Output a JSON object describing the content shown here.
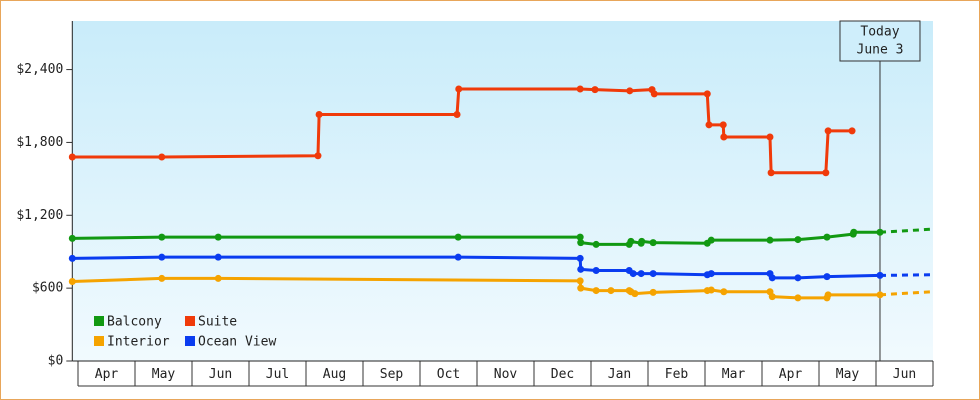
{
  "chart_data": {
    "type": "line",
    "xlim": [
      -0.1,
      15
    ],
    "ylim": [
      0,
      2800
    ],
    "xticks": [
      {
        "value": 0,
        "label": "Apr"
      },
      {
        "value": 1,
        "label": "May"
      },
      {
        "value": 2,
        "label": "Jun"
      },
      {
        "value": 3,
        "label": "Jul"
      },
      {
        "value": 4,
        "label": "Aug"
      },
      {
        "value": 5,
        "label": "Sep"
      },
      {
        "value": 6,
        "label": "Oct"
      },
      {
        "value": 7,
        "label": "Nov"
      },
      {
        "value": 8,
        "label": "Dec"
      },
      {
        "value": 9,
        "label": "Jan"
      },
      {
        "value": 10,
        "label": "Feb"
      },
      {
        "value": 11,
        "label": "Mar"
      },
      {
        "value": 12,
        "label": "Apr"
      },
      {
        "value": 13,
        "label": "May"
      },
      {
        "value": 14,
        "label": "Jun"
      }
    ],
    "yticks": [
      {
        "value": 0,
        "label": "$0"
      },
      {
        "value": 600,
        "label": "$600"
      },
      {
        "value": 1200,
        "label": "$1,200"
      },
      {
        "value": 1800,
        "label": "$1,800"
      },
      {
        "value": 2400,
        "label": "$2,400"
      }
    ],
    "today": {
      "x": 14.07,
      "label": [
        "Today",
        "June 3"
      ]
    },
    "projection_x": [
      14.07,
      14.96
    ],
    "series": [
      {
        "name": "Balcony",
        "color": "#129912",
        "x": [
          -0.1,
          1.47,
          2.46,
          6.67,
          8.81,
          8.82,
          9.09,
          9.67,
          9.7,
          9.88,
          9.89,
          10.09,
          11.04,
          11.11,
          12.14,
          12.63,
          13.14,
          13.6,
          13.61,
          14.07
        ],
        "values": [
          1010,
          1020,
          1020,
          1020,
          1020,
          975,
          960,
          960,
          985,
          970,
          985,
          975,
          970,
          995,
          995,
          1000,
          1020,
          1045,
          1060,
          1060
        ],
        "projection": [
          1060,
          1085
        ]
      },
      {
        "name": "Suite",
        "color": "#f03a0a",
        "x": [
          -0.1,
          1.47,
          4.21,
          4.23,
          6.65,
          6.68,
          8.81,
          9.07,
          9.68,
          10.07,
          10.11,
          11.04,
          11.07,
          11.32,
          11.33,
          12.14,
          12.16,
          13.12,
          13.16,
          13.58
        ],
        "values": [
          1680,
          1680,
          1690,
          2030,
          2030,
          2240,
          2240,
          2235,
          2225,
          2235,
          2200,
          2200,
          1945,
          1945,
          1845,
          1845,
          1550,
          1550,
          1895,
          1895
        ]
      },
      {
        "name": "Interior",
        "color": "#f5a300",
        "x": [
          -0.1,
          1.47,
          2.46,
          8.81,
          8.82,
          9.09,
          9.35,
          9.67,
          9.7,
          9.77,
          10.09,
          11.04,
          11.11,
          11.33,
          12.14,
          12.18,
          12.63,
          13.14,
          13.16,
          14.07
        ],
        "values": [
          655,
          680,
          680,
          660,
          600,
          580,
          580,
          580,
          570,
          555,
          565,
          580,
          585,
          570,
          570,
          530,
          520,
          520,
          545,
          545
        ],
        "projection": [
          545,
          570
        ]
      },
      {
        "name": "Ocean View",
        "color": "#0a3cf0",
        "x": [
          -0.1,
          1.47,
          2.46,
          6.67,
          8.81,
          8.82,
          9.09,
          9.67,
          9.74,
          9.88,
          10.09,
          11.04,
          11.11,
          12.14,
          12.18,
          12.63,
          13.14,
          14.07
        ],
        "values": [
          845,
          855,
          855,
          855,
          845,
          755,
          745,
          745,
          720,
          720,
          720,
          710,
          720,
          720,
          685,
          685,
          695,
          705
        ],
        "projection": [
          705,
          710
        ]
      }
    ]
  }
}
